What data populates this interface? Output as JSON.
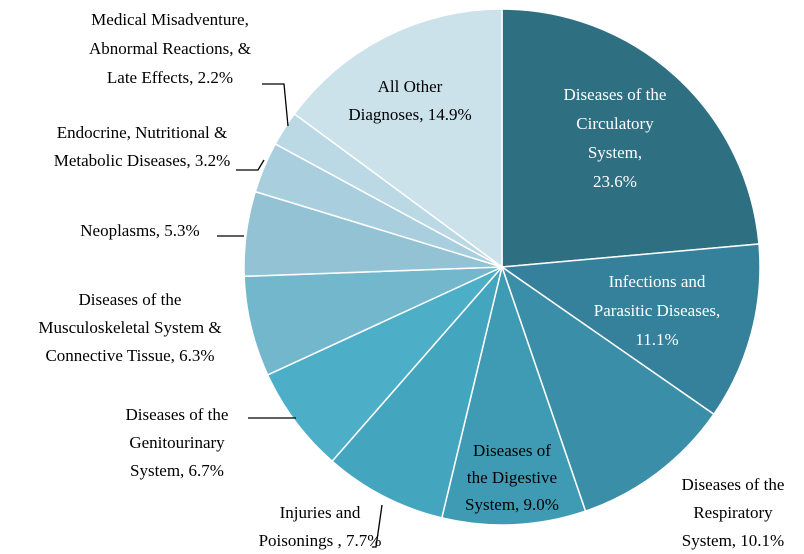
{
  "chart_data": {
    "type": "pie",
    "labels": [
      [
        "Diseases of the",
        "Circulatory",
        "System,",
        "23.6%"
      ],
      [
        "Infections and",
        "Parasitic Diseases,",
        "11.1%"
      ],
      [
        "Diseases of the",
        "Respiratory",
        "System, 10.1%"
      ],
      [
        "Diseases of",
        "the Digestive",
        "System, 9.0%"
      ],
      [
        "Injuries and",
        "Poisonings , 7.7%"
      ],
      [
        "Diseases of the",
        "Genitourinary",
        "System, 6.7%"
      ],
      [
        "Diseases of the",
        "Musculoskeletal System &",
        "Connective Tissue, 6.3%"
      ],
      [
        "Neoplasms, 5.3%"
      ],
      [
        "Endocrine, Nutritional &",
        "Metabolic Diseases, 3.2%"
      ],
      [
        "Medical Misadventure,",
        "Abnormal Reactions, &",
        "Late Effects, 2.2%"
      ],
      [
        "All Other",
        "Diagnoses, 14.9%"
      ]
    ],
    "values": [
      23.6,
      11.1,
      10.1,
      9.0,
      7.7,
      6.7,
      6.3,
      5.3,
      3.2,
      2.2,
      14.9
    ],
    "colors": [
      "#2e6f82",
      "#35809a",
      "#3b8ea7",
      "#3f9ab4",
      "#44a5be",
      "#4caec7",
      "#72b7cc",
      "#92c2d4",
      "#a9cfde",
      "#bad9e5",
      "#cce2eb"
    ]
  }
}
